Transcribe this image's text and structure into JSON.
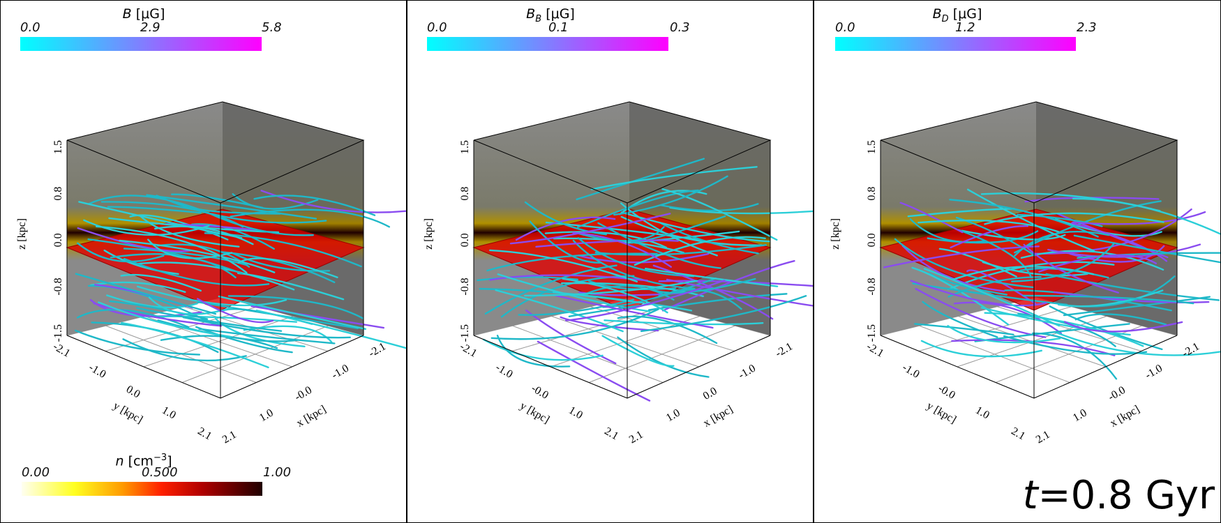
{
  "panels": [
    {
      "id": "B",
      "colorbar": {
        "symbol": "B",
        "subscript": "",
        "unit": "[μG]",
        "ticks": [
          "0.0",
          "2.9",
          "5.8"
        ]
      },
      "axes": {
        "z_label": "z [kpc]",
        "y_label": "y [kpc]",
        "x_label": "x [kpc]",
        "z_ticks": [
          "1.5",
          "0.8",
          "0.0",
          "-0.8",
          "-1.5"
        ],
        "y_ticks": [
          "-2.1",
          "-1.0",
          "0.0",
          "1.0",
          "2.1"
        ],
        "x_ticks": [
          "2.1",
          "1.0",
          "-0.0",
          "-1.0",
          "-2.1"
        ]
      }
    },
    {
      "id": "BB",
      "colorbar": {
        "symbol": "B",
        "subscript": "B",
        "unit": "[μG]",
        "ticks": [
          "0.0",
          "0.1",
          "0.3"
        ]
      },
      "axes": {
        "z_label": "z [kpc]",
        "y_label": "y [kpc]",
        "x_label": "x [kpc]",
        "z_ticks": [
          "1.5",
          "0.8",
          "0.0",
          "-0.8",
          "-1.5"
        ],
        "y_ticks": [
          "-2.1",
          "-1.0",
          "-0.0",
          "1.0",
          "2.1"
        ],
        "x_ticks": [
          "2.1",
          "1.0",
          "0.0",
          "-1.0",
          "-2.1"
        ]
      }
    },
    {
      "id": "BD",
      "colorbar": {
        "symbol": "B",
        "subscript": "D",
        "unit": "[μG]",
        "ticks": [
          "0.0",
          "1.2",
          "2.3"
        ]
      },
      "axes": {
        "z_label": "z [kpc]",
        "y_label": "y [kpc]",
        "x_label": "x [kpc]",
        "z_ticks": [
          "1.5",
          "0.8",
          "0.0",
          "-0.8",
          "-1.5"
        ],
        "y_ticks": [
          "-2.1",
          "-1.0",
          "-0.0",
          "1.0",
          "2.1"
        ],
        "x_ticks": [
          "2.1",
          "1.0",
          "-0.0",
          "-1.0",
          "-2.1"
        ]
      }
    }
  ],
  "density_colorbar": {
    "symbol": "n",
    "unit": "[cm",
    "unit_exp": "−3",
    "unit_close": "]",
    "ticks": [
      "0.00",
      "0.500",
      "1.00"
    ]
  },
  "time_label": {
    "symbol": "t",
    "value": "=0.8 Gyr"
  },
  "colors": {
    "field_low": "#00ffff",
    "field_high": "#ff00ff",
    "disk": "#e00000",
    "wall": "#8a8a8a"
  }
}
